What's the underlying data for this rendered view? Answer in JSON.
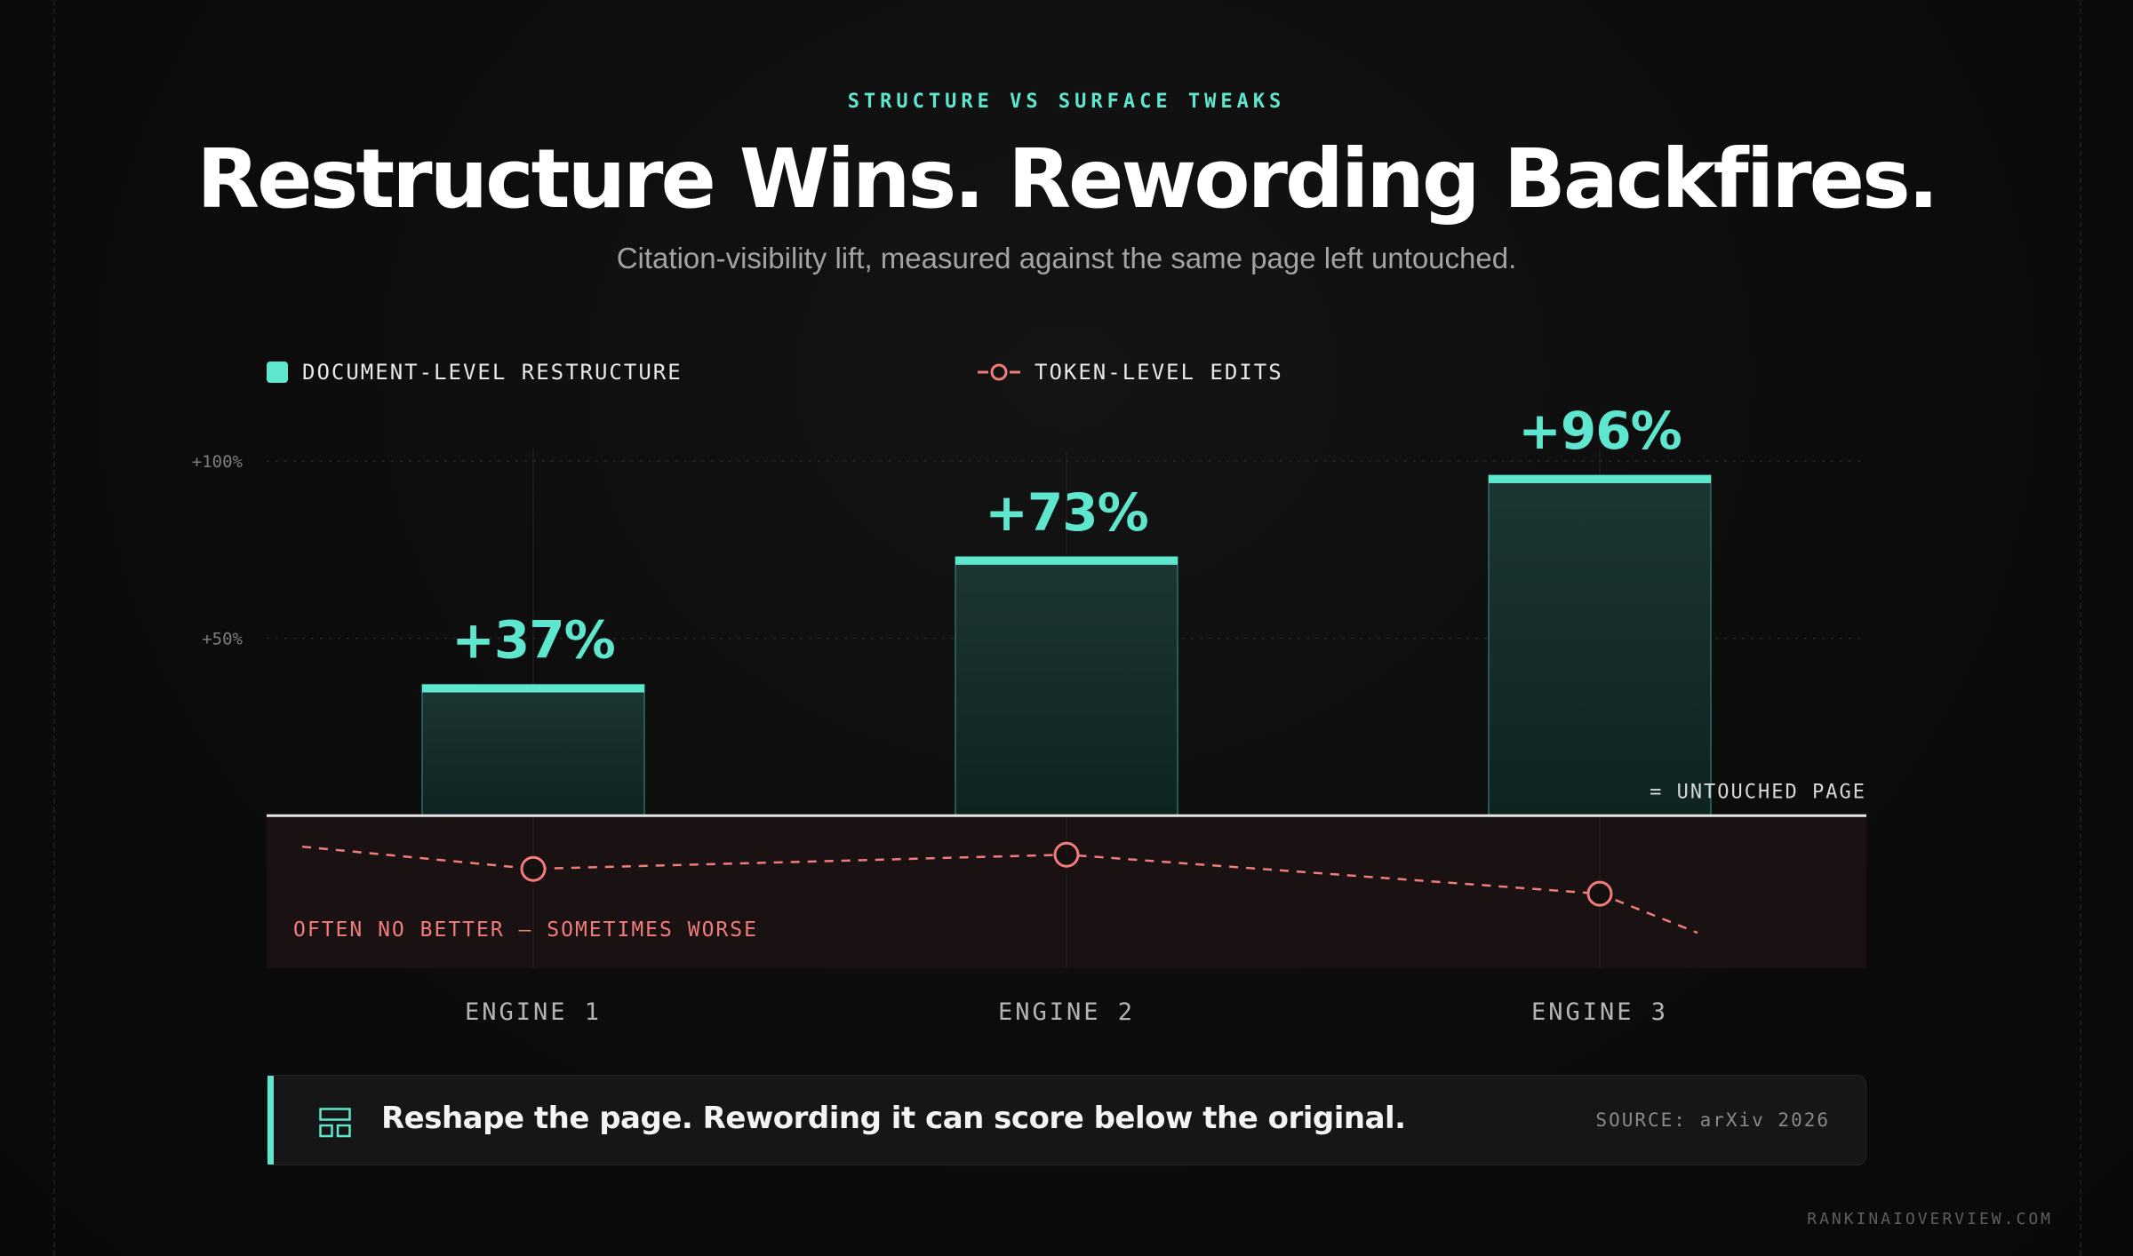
{
  "header": {
    "eyebrow": "STRUCTURE VS SURFACE TWEAKS",
    "title": "Restructure Wins. Rewording Backfires.",
    "subtitle": "Citation-visibility lift, measured against the same page left untouched."
  },
  "legend": {
    "restructure_label": "DOCUMENT-LEVEL RESTRUCTURE",
    "token_label": "TOKEN-LEVEL EDITS"
  },
  "colors": {
    "accent": "#5ee6cf",
    "negative": "#f07b7b",
    "bar_fill_top": "#1d3533",
    "bar_fill_bottom": "#0e2423",
    "negative_band": "#1a1212",
    "baseline": "#e5e5e5"
  },
  "chart_data": {
    "type": "bar",
    "categories": [
      "ENGINE 1",
      "ENGINE 2",
      "ENGINE 3"
    ],
    "series": [
      {
        "name": "DOCUMENT-LEVEL RESTRUCTURE",
        "type": "bar",
        "values": [
          37,
          73,
          96
        ],
        "labels": [
          "+37%",
          "+73%",
          "+96%"
        ]
      },
      {
        "name": "TOKEN-LEVEL EDITS",
        "type": "line",
        "values": [
          -15,
          -11,
          -22
        ],
        "dashed": true
      }
    ],
    "yticks": [
      {
        "value": 100,
        "label": "+100%"
      },
      {
        "value": 50,
        "label": "+50%"
      }
    ],
    "ylim": [
      -43,
      103
    ],
    "baseline_label": "= UNTOUCHED PAGE",
    "negative_annotation": "OFTEN NO BETTER — SOMETIMES WORSE",
    "grid": true,
    "legend_position": "top-left"
  },
  "callout": {
    "icon": "layout-icon",
    "text": "Reshape the page. Rewording it can score below the original.",
    "source": "SOURCE: arXiv 2026"
  },
  "footer": {
    "site": "RANKINAIOVERVIEW.COM"
  }
}
